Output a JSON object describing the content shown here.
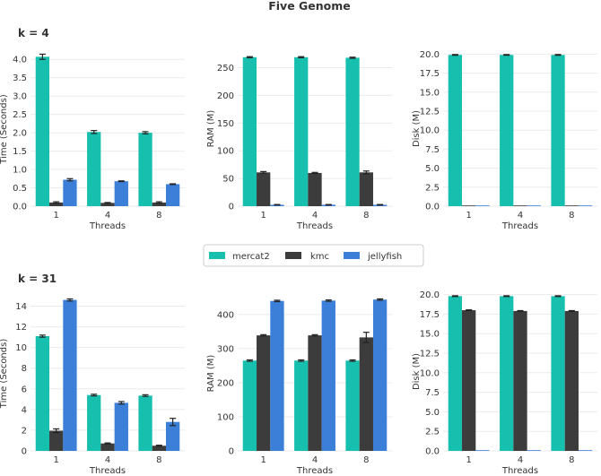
{
  "figure_title": "Five Genome",
  "legend": {
    "entries": [
      {
        "label": "mercat2",
        "color": "#17bfae"
      },
      {
        "label": "kmc",
        "color": "#3c3c3c"
      },
      {
        "label": "jellyfish",
        "color": "#3b7fd9"
      }
    ]
  },
  "chart_data": [
    {
      "type": "bar",
      "group": "k = 4",
      "title": "",
      "xlabel": "Threads",
      "ylabel": "Time (Seconds)",
      "categories": [
        "1",
        "4",
        "8"
      ],
      "ylim": [
        0,
        4.2
      ],
      "yticks": [
        0.0,
        0.5,
        1.0,
        1.5,
        2.0,
        2.5,
        3.0,
        3.5,
        4.0
      ],
      "ytick_labels": [
        "0.0",
        "0.5",
        "1.0",
        "1.5",
        "2.0",
        "2.5",
        "3.0",
        "3.5",
        "4.0"
      ],
      "series": [
        {
          "name": "mercat2",
          "values": [
            4.07,
            2.02,
            2.0
          ],
          "errors": [
            0.07,
            0.04,
            0.03
          ]
        },
        {
          "name": "kmc",
          "values": [
            0.1,
            0.09,
            0.1
          ],
          "errors": [
            0.02,
            0.01,
            0.02
          ]
        },
        {
          "name": "jellyfish",
          "values": [
            0.72,
            0.68,
            0.6
          ],
          "errors": [
            0.03,
            0.01,
            0.01
          ]
        }
      ]
    },
    {
      "type": "bar",
      "group": "k = 4",
      "title": "",
      "xlabel": "Threads",
      "ylabel": "RAM (M)",
      "categories": [
        "1",
        "4",
        "8"
      ],
      "ylim": [
        0,
        280
      ],
      "yticks": [
        0,
        50,
        100,
        150,
        200,
        250
      ],
      "ytick_labels": [
        "0",
        "50",
        "100",
        "150",
        "200",
        "250"
      ],
      "series": [
        {
          "name": "mercat2",
          "values": [
            269,
            269,
            268
          ],
          "errors": [
            1,
            1,
            1
          ]
        },
        {
          "name": "kmc",
          "values": [
            61,
            60,
            61
          ],
          "errors": [
            1.5,
            1,
            2.5
          ]
        },
        {
          "name": "jellyfish",
          "values": [
            2.5,
            2.5,
            2.5
          ],
          "errors": [
            0.5,
            0.5,
            0.5
          ]
        }
      ]
    },
    {
      "type": "bar",
      "group": "k = 4",
      "title": "",
      "xlabel": "Threads",
      "ylabel": "Disk (M)",
      "categories": [
        "1",
        "4",
        "8"
      ],
      "ylim": [
        0,
        20.4
      ],
      "yticks": [
        0.0,
        2.5,
        5.0,
        7.5,
        10.0,
        12.5,
        15.0,
        17.5,
        20.0
      ],
      "ytick_labels": [
        "0.0",
        "2.5",
        "5.0",
        "7.5",
        "10.0",
        "12.5",
        "15.0",
        "17.5",
        "20.0"
      ],
      "series": [
        {
          "name": "mercat2",
          "values": [
            19.9,
            19.9,
            19.9
          ],
          "errors": [
            0.05,
            0.05,
            0.05
          ]
        },
        {
          "name": "kmc",
          "values": [
            0.02,
            0.02,
            0.02
          ],
          "errors": [
            0,
            0,
            0
          ]
        },
        {
          "name": "jellyfish",
          "values": [
            0.02,
            0.02,
            0.02
          ],
          "errors": [
            0,
            0,
            0
          ]
        }
      ]
    },
    {
      "type": "bar",
      "group": "k = 31",
      "title": "",
      "xlabel": "Threads",
      "ylabel": "Time (Seconds)",
      "categories": [
        "1",
        "4",
        "8"
      ],
      "ylim": [
        0,
        15
      ],
      "yticks": [
        0,
        2,
        4,
        6,
        8,
        10,
        12,
        14
      ],
      "ytick_labels": [
        "0",
        "2",
        "4",
        "6",
        "8",
        "10",
        "12",
        "14"
      ],
      "series": [
        {
          "name": "mercat2",
          "values": [
            11.1,
            5.4,
            5.35
          ],
          "errors": [
            0.1,
            0.08,
            0.08
          ]
        },
        {
          "name": "kmc",
          "values": [
            1.95,
            0.72,
            0.5
          ],
          "errors": [
            0.18,
            0.05,
            0.05
          ]
        },
        {
          "name": "jellyfish",
          "values": [
            14.6,
            4.65,
            2.8
          ],
          "errors": [
            0.1,
            0.12,
            0.35
          ]
        }
      ]
    },
    {
      "type": "bar",
      "group": "k = 31",
      "title": "",
      "xlabel": "Threads",
      "ylabel": "RAM (M)",
      "categories": [
        "1",
        "4",
        "8"
      ],
      "ylim": [
        0,
        455
      ],
      "yticks": [
        0,
        100,
        200,
        300,
        400
      ],
      "ytick_labels": [
        "0",
        "100",
        "200",
        "300",
        "400"
      ],
      "series": [
        {
          "name": "mercat2",
          "values": [
            265,
            265,
            265
          ],
          "errors": [
            2,
            2,
            2
          ]
        },
        {
          "name": "kmc",
          "values": [
            339,
            339,
            333
          ],
          "errors": [
            2,
            2,
            15
          ]
        },
        {
          "name": "jellyfish",
          "values": [
            440,
            441,
            444
          ],
          "errors": [
            2,
            2,
            2
          ]
        }
      ]
    },
    {
      "type": "bar",
      "group": "k = 31",
      "title": "",
      "xlabel": "Threads",
      "ylabel": "Disk (M)",
      "categories": [
        "1",
        "4",
        "8"
      ],
      "ylim": [
        0,
        20.3
      ],
      "yticks": [
        0.0,
        2.5,
        5.0,
        7.5,
        10.0,
        12.5,
        15.0,
        17.5,
        20.0
      ],
      "ytick_labels": [
        "0.0",
        "2.5",
        "5.0",
        "7.5",
        "10.0",
        "12.5",
        "15.0",
        "17.5",
        "20.0"
      ],
      "series": [
        {
          "name": "mercat2",
          "values": [
            19.8,
            19.8,
            19.8
          ],
          "errors": [
            0.05,
            0.05,
            0.05
          ]
        },
        {
          "name": "kmc",
          "values": [
            18.0,
            17.9,
            17.9
          ],
          "errors": [
            0.05,
            0.05,
            0.05
          ]
        },
        {
          "name": "jellyfish",
          "values": [
            0.02,
            0.02,
            0.02
          ],
          "errors": [
            0,
            0,
            0
          ]
        }
      ]
    }
  ]
}
